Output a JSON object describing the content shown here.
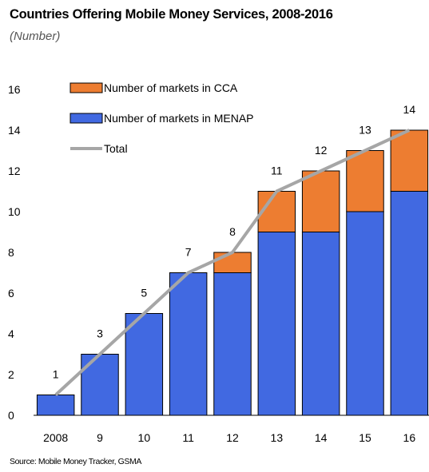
{
  "chart_data": {
    "type": "bar",
    "stacked": true,
    "title": "Countries Offering Mobile Money Services, 2008-2016",
    "subtitle": "(Number)",
    "source": "Source: Mobile Money Tracker, GSMA",
    "categories": [
      "2008",
      "9",
      "10",
      "11",
      "12",
      "13",
      "14",
      "15",
      "16"
    ],
    "series": [
      {
        "name": "Number of markets in MENAP",
        "kind": "bar",
        "color": "#4169E1",
        "values": [
          1,
          3,
          5,
          7,
          7,
          9,
          9,
          10,
          11
        ]
      },
      {
        "name": "Number of markets in CCA",
        "kind": "bar",
        "color": "#ED7D31",
        "values": [
          0,
          0,
          0,
          0,
          1,
          2,
          3,
          3,
          3
        ]
      },
      {
        "name": "Total",
        "kind": "line",
        "color": "#A6A6A6",
        "values": [
          1,
          3,
          5,
          7,
          8,
          11,
          12,
          13,
          14
        ]
      }
    ],
    "data_labels": [
      "1",
      "3",
      "5",
      "7",
      "8",
      "11",
      "12",
      "13",
      "14"
    ],
    "y_ticks": [
      "0",
      "2",
      "4",
      "6",
      "8",
      "10",
      "12",
      "14",
      "16"
    ],
    "ylim": [
      0,
      16
    ],
    "grid": false,
    "legend_position": "top-left",
    "legend": [
      {
        "label": "Number of markets in CCA",
        "marker": "box",
        "color": "#ED7D31"
      },
      {
        "label": "Number of markets in MENAP",
        "marker": "box",
        "color": "#4169E1"
      },
      {
        "label": "Total",
        "marker": "line",
        "color": "#A6A6A6"
      }
    ]
  }
}
